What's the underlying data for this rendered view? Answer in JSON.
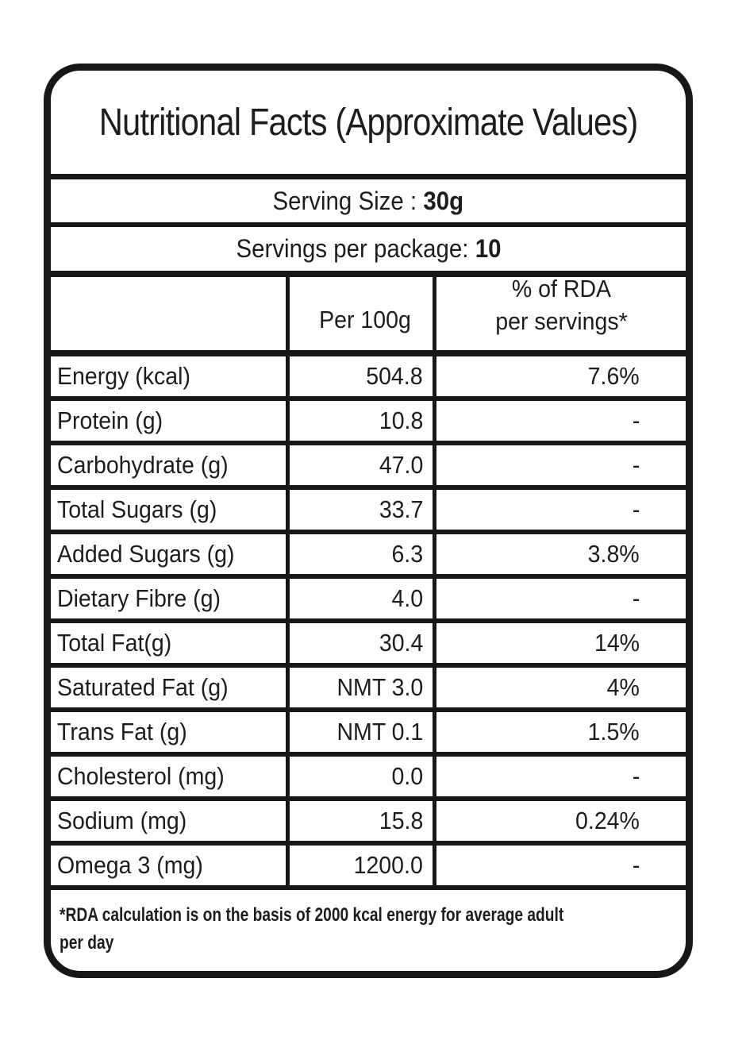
{
  "nutrition_label": {
    "title": "Nutritional Facts (Approximate Values)",
    "serving_size": {
      "label": "Serving Size :",
      "value": "30g"
    },
    "servings_per_package": {
      "label": "Servings per package:",
      "value": "10"
    },
    "table": {
      "column_headers": {
        "nutrient": "",
        "per_100g": "Per 100g",
        "rda_line1": "% of RDA",
        "rda_line2": "per servings*"
      },
      "rows": [
        {
          "nutrient": "Energy (kcal)",
          "per_100g": "504.8",
          "rda": "7.6%"
        },
        {
          "nutrient": "Protein (g)",
          "per_100g": "10.8",
          "rda": "-"
        },
        {
          "nutrient": "Carbohydrate (g)",
          "per_100g": "47.0",
          "rda": "-"
        },
        {
          "nutrient": "Total Sugars (g)",
          "per_100g": "33.7",
          "rda": "-"
        },
        {
          "nutrient": "Added Sugars (g)",
          "per_100g": "6.3",
          "rda": "3.8%"
        },
        {
          "nutrient": "Dietary Fibre (g)",
          "per_100g": "4.0",
          "rda": "-"
        },
        {
          "nutrient": "Total Fat(g)",
          "per_100g": "30.4",
          "rda": "14%"
        },
        {
          "nutrient": "Saturated Fat (g)",
          "per_100g": "NMT 3.0",
          "rda": "4%"
        },
        {
          "nutrient": "Trans Fat (g)",
          "per_100g": "NMT 0.1",
          "rda": "1.5%"
        },
        {
          "nutrient": "Cholesterol (mg)",
          "per_100g": "0.0",
          "rda": "-"
        },
        {
          "nutrient": "Sodium (mg)",
          "per_100g": "15.8",
          "rda": "0.24%"
        },
        {
          "nutrient": "Omega 3 (mg)",
          "per_100g": "1200.0",
          "rda": "-"
        }
      ]
    },
    "footnote_line1": "*RDA calculation is on the basis of 2000 kcal energy for average adult",
    "footnote_line2": "per day",
    "colors": {
      "ink": "#1d1d1d",
      "border": "#171717",
      "background": "#ffffff"
    }
  }
}
